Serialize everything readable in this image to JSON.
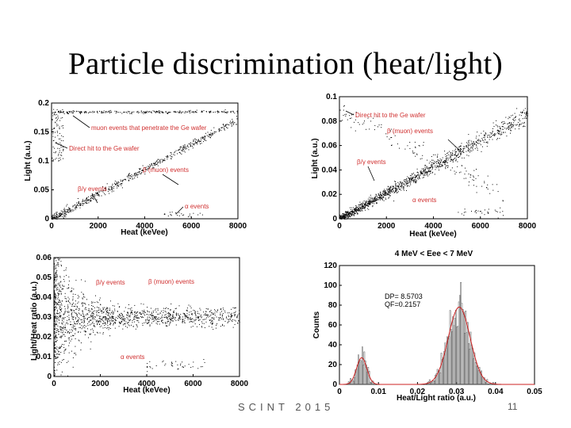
{
  "slide": {
    "title": "Particle discrimination (heat/light)",
    "footer_center": "SCINT 2015",
    "page_number": "11"
  },
  "chart_data": [
    {
      "id": "tl",
      "type": "scatter",
      "xlabel": "Heat (keVee)",
      "ylabel": "Light (a.u.)",
      "xlim": [
        0,
        8000
      ],
      "ylim": [
        0,
        0.2
      ],
      "xticks": [
        "0",
        "2000",
        "4000",
        "6000",
        "8000"
      ],
      "yticks": [
        "0",
        "0.05",
        "0.1",
        "0.15",
        "0.2"
      ],
      "populations": [
        {
          "name": "β/γ band",
          "relation": "light ≈ 0.0000215 × heat",
          "x_range": [
            0,
            8000
          ]
        },
        {
          "name": "muon line",
          "light": 0.185,
          "x_range": [
            0,
            8000
          ]
        },
        {
          "name": "α events",
          "light": 0.008,
          "x_range": [
            4800,
            6500
          ]
        }
      ],
      "annotations": [
        "muon events that penetrate the Ge wafer",
        "Direct hit to the Ge wafer",
        "β (muon) events",
        "β/γ events",
        "α events"
      ]
    },
    {
      "id": "tr",
      "type": "scatter",
      "xlabel": "Heat (keVee)",
      "ylabel": "Light (a.u.)",
      "xlim": [
        0,
        8000
      ],
      "ylim": [
        0,
        0.1
      ],
      "xticks": [
        "0",
        "2000",
        "4000",
        "6000",
        "8000"
      ],
      "yticks": [
        "0",
        "0.02",
        "0.04",
        "0.06",
        "0.08",
        "0.1"
      ],
      "populations": [
        {
          "name": "β/γ band",
          "relation": "light ≈ 0.0000107 × heat",
          "x_range": [
            0,
            8000
          ]
        },
        {
          "name": "direct hit",
          "relation": "light ≈ 0.09 − 0.00001 × heat",
          "x_range": [
            0,
            7000
          ]
        },
        {
          "name": "α events",
          "light": 0.006,
          "x_range": [
            5000,
            7000
          ]
        }
      ],
      "annotations": [
        "Direct hit to the Ge wafer",
        "β (muon) events",
        "β/γ events",
        "α events"
      ]
    },
    {
      "id": "bl",
      "type": "scatter",
      "xlabel": "Heat (keVee)",
      "ylabel": "Light/Heat ratio (a.u.)",
      "xlim": [
        0,
        8000
      ],
      "ylim": [
        0,
        0.06
      ],
      "xticks": [
        "0",
        "2000",
        "4000",
        "6000",
        "8000"
      ],
      "yticks": [
        "0",
        "0.01",
        "0.02",
        "0.03",
        "0.04",
        "0.05",
        "0.06"
      ],
      "populations": [
        {
          "name": "β/γ band",
          "ratio": 0.03,
          "x_range": [
            0,
            8000
          ]
        },
        {
          "name": "α events",
          "ratio": 0.006,
          "x_range": [
            4000,
            6500
          ]
        }
      ],
      "annotations": [
        "β/γ events",
        "β (muon) events",
        "α events"
      ]
    },
    {
      "id": "br",
      "type": "histogram",
      "title": "4 MeV < Eee < 7 MeV",
      "xlabel": "Heat/Light ratio (a.u.)",
      "ylabel": "Counts",
      "xlim": [
        0,
        0.05
      ],
      "ylim": [
        0,
        120
      ],
      "xticks": [
        "0",
        "0.01",
        "0.02",
        "0.03",
        "0.04",
        "0.05"
      ],
      "yticks": [
        "0",
        "20",
        "40",
        "60",
        "80",
        "100",
        "120"
      ],
      "fit": {
        "type": "double gaussian",
        "peaks": [
          {
            "mean": 0.0057,
            "sigma": 0.0013,
            "amplitude": 27
          },
          {
            "mean": 0.0307,
            "sigma": 0.0028,
            "amplitude": 78
          }
        ]
      },
      "stats": [
        "DP= 8.5703",
        "QF=0.2157"
      ]
    }
  ]
}
